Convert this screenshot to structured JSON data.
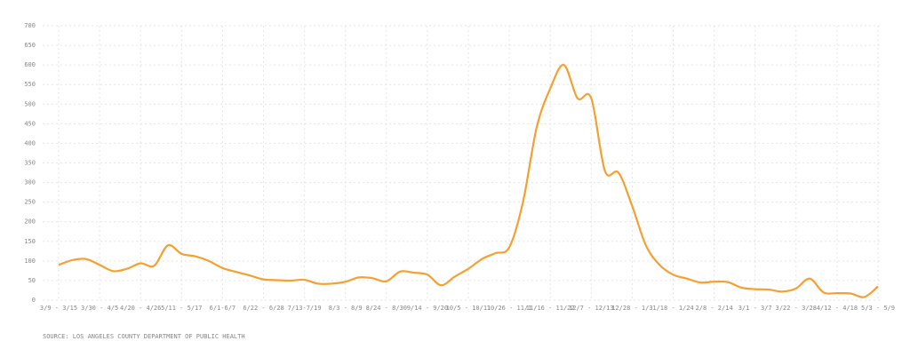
{
  "chart_data": {
    "type": "line",
    "categories": [
      "3/9 - 3/15",
      null,
      null,
      "3/30 - 4/5",
      null,
      null,
      "4/20 - 4/26",
      null,
      null,
      "5/11 - 5/17",
      null,
      null,
      "6/1-6/7",
      null,
      null,
      "6/22 - 6/28",
      null,
      null,
      "7/13-7/19",
      null,
      null,
      "8/3 - 8/9",
      null,
      null,
      "8/24 - 8/30",
      null,
      null,
      "9/14 - 9/20",
      null,
      null,
      "10/5 - 10/11",
      null,
      null,
      "10/26 - 11/1",
      null,
      null,
      "11/16 - 11/22",
      null,
      null,
      "12/7 - 12/13",
      null,
      null,
      "12/28 - 1/3",
      null,
      null,
      "1/18 - 1/24",
      null,
      null,
      "2/8 - 2/14",
      null,
      null,
      "3/1 - 3/7",
      null,
      null,
      "3/22 - 3/28",
      null,
      null,
      "4/12 - 4/18",
      null,
      null,
      "5/3 - 5/9"
    ],
    "values": [
      90,
      102,
      105,
      90,
      74,
      80,
      94,
      88,
      140,
      118,
      112,
      100,
      82,
      72,
      63,
      53,
      51,
      50,
      52,
      42,
      42,
      47,
      58,
      56,
      48,
      73,
      70,
      65,
      38,
      60,
      80,
      105,
      120,
      135,
      250,
      440,
      540,
      600,
      515,
      515,
      330,
      325,
      240,
      140,
      90,
      65,
      55,
      45,
      47,
      46,
      32,
      28,
      27,
      22,
      30,
      55,
      20,
      18,
      17,
      8,
      35
    ],
    "color": "#f5a030",
    "ylim": [
      0,
      700
    ],
    "yticks": [
      0,
      50,
      100,
      150,
      200,
      250,
      300,
      350,
      400,
      450,
      500,
      550,
      600,
      650,
      700
    ],
    "grid": true,
    "source": "SOURCE: LOS ANGELES COUNTY DEPARTMENT OF PUBLIC HEALTH"
  }
}
